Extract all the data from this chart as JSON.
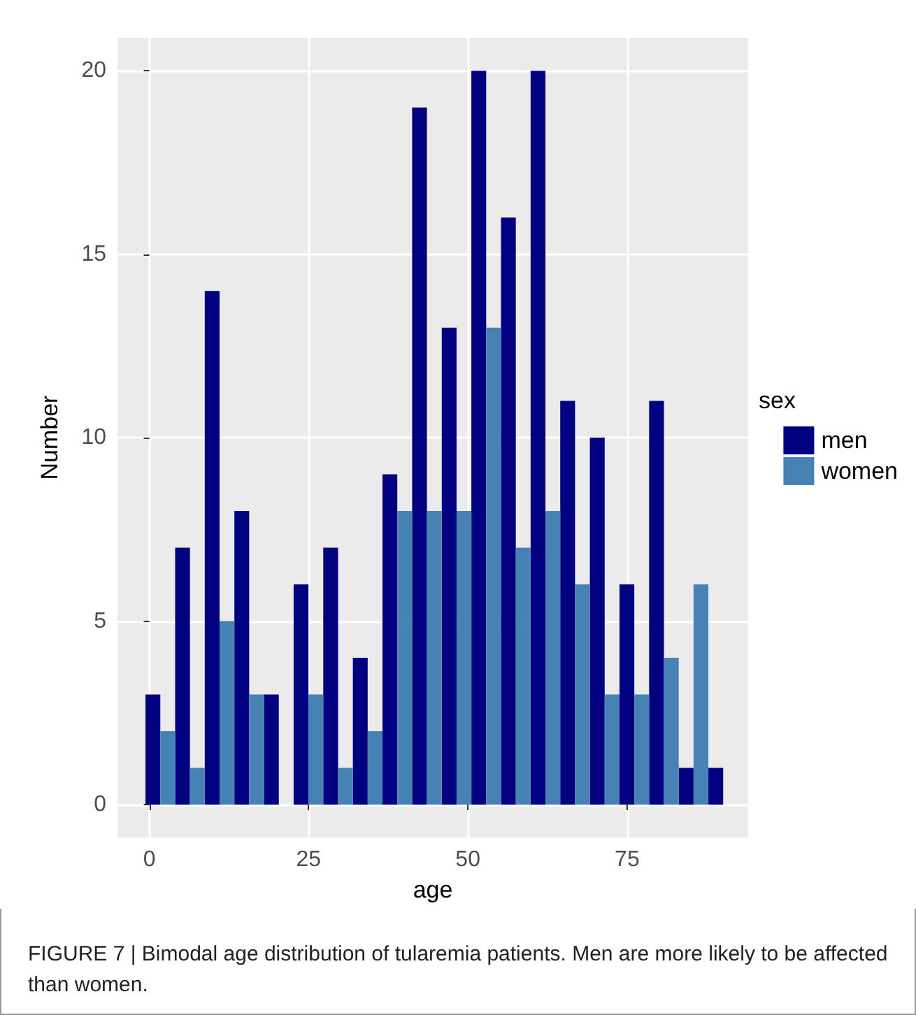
{
  "chart_data": {
    "type": "histogram",
    "xlabel": "age",
    "ylabel": "Number",
    "legend_title": "sex",
    "legend": "right",
    "annotations": [
      "FIGURE 7 | Bimodal age distribution of tularemia patients. Men are more likely to be affected than women."
    ],
    "bins": [
      -0.6,
      4.05,
      8.7,
      13.35,
      18,
      22.65,
      27.3,
      31.95,
      36.6,
      41.25,
      45.9,
      50.55,
      55.2,
      59.85,
      64.5,
      69.15,
      73.8,
      78.45,
      83.1,
      87.75,
      92.4
    ],
    "series": [
      {
        "name": "men",
        "color": "#000080",
        "values": [
          3,
          7,
          14,
          8,
          3,
          6,
          7,
          4,
          9,
          19,
          13,
          20,
          16,
          20,
          11,
          10,
          6,
          11,
          1,
          1
        ]
      },
      {
        "name": "women",
        "color": "#4682b4",
        "values": [
          2,
          1,
          5,
          3,
          0,
          3,
          1,
          2,
          8,
          8,
          8,
          13,
          7,
          8,
          6,
          3,
          3,
          4,
          6,
          0
        ]
      }
    ],
    "xlim": [
      -5,
      94
    ],
    "xticks": [
      0,
      25,
      50,
      75
    ],
    "ylim": [
      -0.9,
      20.9
    ],
    "yticks": [
      0,
      5,
      10,
      15,
      20
    ],
    "grid": true
  }
}
